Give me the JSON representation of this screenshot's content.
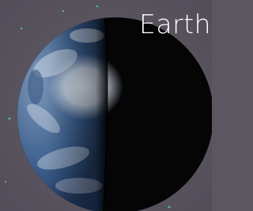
{
  "label": "Earth"
}
